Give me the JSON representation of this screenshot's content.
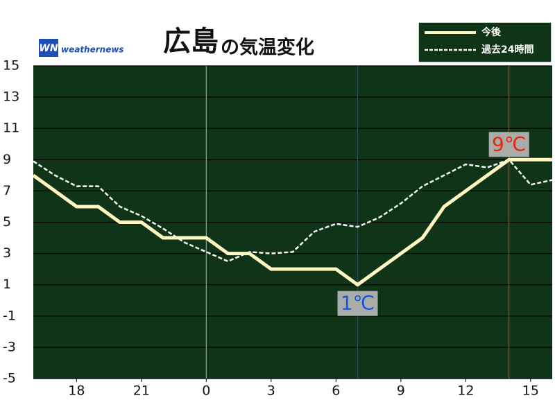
{
  "chart_data": {
    "type": "line",
    "title": "広島",
    "title_suffix": "の気温変化",
    "logo": {
      "mark": "WN",
      "text": "weathernews"
    },
    "x": [
      16,
      17,
      18,
      19,
      20,
      21,
      22,
      23,
      24,
      25,
      26,
      27,
      28,
      29,
      30,
      31,
      32,
      33,
      34,
      35,
      36,
      37,
      38,
      39,
      40
    ],
    "series": [
      {
        "name": "今後",
        "color": "#fff6c2",
        "style": "solid",
        "values": [
          8,
          7,
          6,
          6,
          5,
          5,
          4,
          4,
          4,
          3,
          3,
          2,
          2,
          2,
          2,
          1,
          2,
          3,
          4,
          6,
          7,
          8,
          9,
          9,
          9
        ]
      },
      {
        "name": "過去24時間",
        "color": "#ffffff",
        "style": "dashed",
        "values": [
          8.9,
          8.0,
          7.3,
          7.3,
          6.0,
          5.4,
          4.6,
          3.7,
          3.1,
          2.5,
          3.1,
          3.0,
          3.1,
          4.4,
          4.9,
          4.7,
          5.3,
          6.2,
          7.3,
          8.0,
          8.7,
          8.5,
          9.0,
          7.4,
          7.7
        ]
      }
    ],
    "xlim": [
      16,
      40
    ],
    "xticks": [
      18,
      21,
      {
        "value": 24,
        "label": "0"
      },
      {
        "value": 27,
        "label": "3"
      },
      {
        "value": 30,
        "label": "6"
      },
      {
        "value": 33,
        "label": "9"
      },
      {
        "value": 36,
        "label": "12"
      },
      {
        "value": 39,
        "label": "15"
      }
    ],
    "ylim": [
      -5,
      15
    ],
    "yticks": [
      -5,
      -3,
      -1,
      1,
      3,
      5,
      7,
      9,
      11,
      13,
      15
    ],
    "grid": true,
    "vlines": [
      {
        "x": 24,
        "color": "#9a9a9a"
      },
      {
        "x": 31,
        "color": "#2040c0"
      },
      {
        "x": 38,
        "color": "#d03a1a"
      }
    ],
    "annotations": [
      {
        "text": "1℃",
        "x": 31,
        "y": 1,
        "color": "#1a55e0",
        "position": "below"
      },
      {
        "text": "9℃",
        "x": 38,
        "y": 9,
        "color": "#e8260e",
        "position": "above"
      }
    ],
    "legend": "top-right",
    "background": "#0f3418"
  }
}
